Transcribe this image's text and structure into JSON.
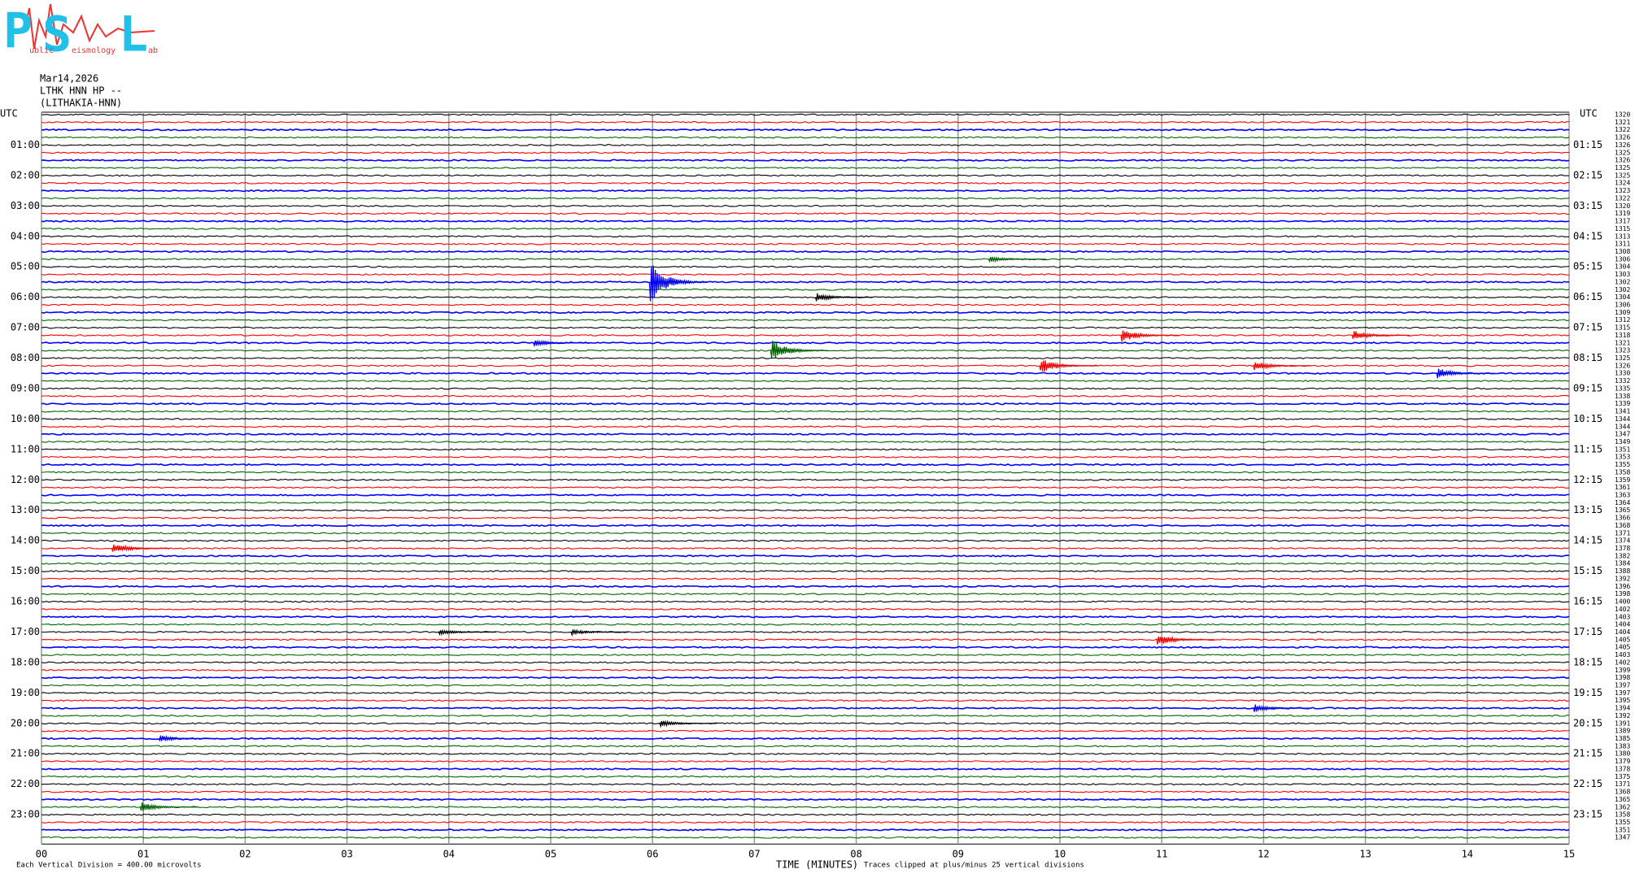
{
  "logo": {
    "letters": [
      "P",
      "S",
      "L"
    ],
    "words": [
      "ublic",
      "eismology",
      "ab"
    ]
  },
  "header": {
    "date": "Mar14,2026",
    "station": "LTHK HNN HP --",
    "location": "(LITHAKIA-HNN)"
  },
  "chart_data": {
    "type": "helicorder",
    "left_title": "UTC",
    "right_title": "UTC",
    "left_hours": [
      "01:00",
      "02:00",
      "03:00",
      "04:00",
      "05:00",
      "06:00",
      "07:00",
      "08:00",
      "09:00",
      "10:00",
      "11:00",
      "12:00",
      "13:00",
      "14:00",
      "15:00",
      "16:00",
      "17:00",
      "18:00",
      "19:00",
      "20:00",
      "21:00",
      "22:00",
      "23:00"
    ],
    "right_hours": [
      "01:15",
      "02:15",
      "03:15",
      "04:15",
      "05:15",
      "06:15",
      "07:15",
      "08:15",
      "09:15",
      "10:15",
      "11:15",
      "12:15",
      "13:15",
      "14:15",
      "15:15",
      "16:15",
      "17:15",
      "18:15",
      "19:15",
      "20:15",
      "21:15",
      "22:15",
      "23:15"
    ],
    "trace_colors": [
      "#000000",
      "#ff0000",
      "#0000ff",
      "#006400"
    ],
    "trace_offsets": [
      1320,
      1321,
      1322,
      1326,
      1326,
      1325,
      1326,
      1325,
      1325,
      1324,
      1323,
      1322,
      1320,
      1319,
      1317,
      1315,
      1313,
      1311,
      1308,
      1306,
      1304,
      1303,
      1302,
      1302,
      1304,
      1306,
      1309,
      1312,
      1315,
      1318,
      1321,
      1323,
      1325,
      1326,
      1330,
      1332,
      1335,
      1338,
      1339,
      1341,
      1344,
      1344,
      1347,
      1349,
      1351,
      1353,
      1355,
      1358,
      1359,
      1361,
      1363,
      1364,
      1365,
      1366,
      1368,
      1371,
      1374,
      1378,
      1382,
      1384,
      1388,
      1392,
      1396,
      1398,
      1400,
      1402,
      1403,
      1404,
      1404,
      1405,
      1405,
      1403,
      1402,
      1399,
      1398,
      1397,
      1397,
      1395,
      1394,
      1392,
      1391,
      1389,
      1385,
      1383,
      1380,
      1379,
      1378,
      1375,
      1371,
      1368,
      1365,
      1362,
      1358,
      1355,
      1351,
      1347
    ],
    "xticks": [
      {
        "value": 0,
        "label": "00"
      },
      {
        "value": 1,
        "label": "01"
      },
      {
        "value": 2,
        "label": "02"
      },
      {
        "value": 3,
        "label": "03"
      },
      {
        "value": 4,
        "label": "04"
      },
      {
        "value": 5,
        "label": "05"
      },
      {
        "value": 6,
        "label": "06"
      },
      {
        "value": 7,
        "label": "07"
      },
      {
        "value": 8,
        "label": "08"
      },
      {
        "value": 9,
        "label": "09"
      },
      {
        "value": 10,
        "label": "10"
      },
      {
        "value": 11,
        "label": "11"
      },
      {
        "value": 12,
        "label": "12"
      },
      {
        "value": 13,
        "label": "13"
      },
      {
        "value": 14,
        "label": "14"
      },
      {
        "value": 15,
        "label": "15"
      }
    ],
    "xlim": [
      0,
      15
    ],
    "x_label": "TIME (MINUTES)",
    "scale_note": "Each Vertical Division =  400.00 microvolts",
    "clip_note": "Traces clipped at plus/minus 25 vertical divisions",
    "events": [
      {
        "trace": 22,
        "minute": 5.97,
        "amplitude": 3
      },
      {
        "trace": 31,
        "minute": 7.16,
        "amplitude": 1.5
      },
      {
        "trace": 29,
        "minute": 10.6,
        "amplitude": 1
      },
      {
        "trace": 33,
        "minute": 9.8,
        "amplitude": 1.1
      },
      {
        "trace": 33,
        "minute": 11.9,
        "amplitude": 0.7
      },
      {
        "trace": 69,
        "minute": 10.95,
        "amplitude": 0.9
      },
      {
        "trace": 34,
        "minute": 13.7,
        "amplitude": 0.8
      },
      {
        "trace": 68,
        "minute": 3.9,
        "amplitude": 0.4
      },
      {
        "trace": 68,
        "minute": 5.2,
        "amplitude": 0.4
      },
      {
        "trace": 91,
        "minute": 0.97,
        "amplitude": 0.7
      },
      {
        "trace": 78,
        "minute": 11.9,
        "amplitude": 0.6
      },
      {
        "trace": 82,
        "minute": 1.15,
        "amplitude": 0.5
      },
      {
        "trace": 80,
        "minute": 6.07,
        "amplitude": 0.5
      },
      {
        "trace": 29,
        "minute": 12.87,
        "amplitude": 0.7
      },
      {
        "trace": 24,
        "minute": 7.6,
        "amplitude": 0.6
      },
      {
        "trace": 30,
        "minute": 4.83,
        "amplitude": 0.5
      },
      {
        "trace": 57,
        "minute": 0.69,
        "amplitude": 0.8
      },
      {
        "trace": 19,
        "minute": 9.3,
        "amplitude": 0.4
      }
    ]
  }
}
